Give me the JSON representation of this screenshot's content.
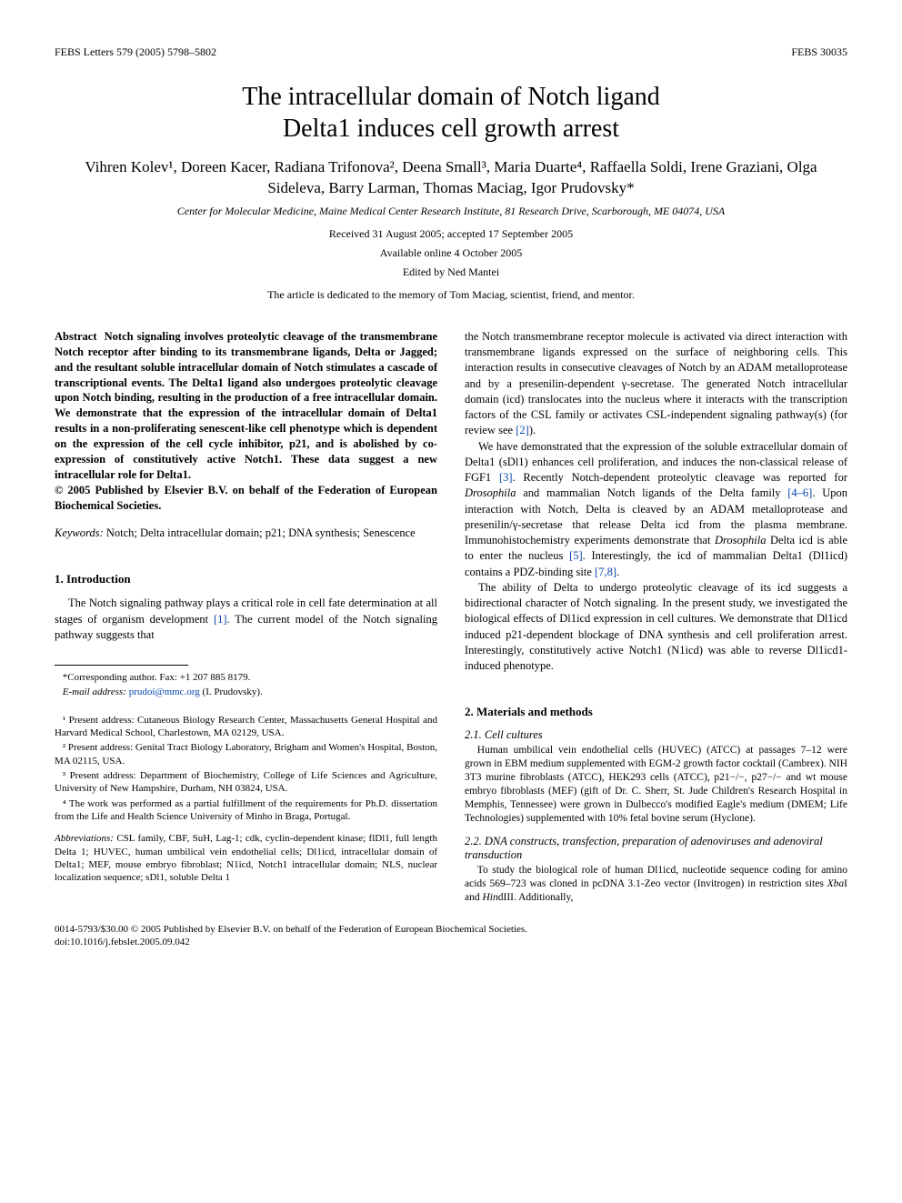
{
  "header": {
    "left": "FEBS Letters 579 (2005) 5798–5802",
    "right": "FEBS 30035"
  },
  "title_line1": "The intracellular domain of Notch ligand",
  "title_line2": "Delta1 induces cell growth arrest",
  "authors": "Vihren Kolev¹, Doreen Kacer, Radiana Trifonova², Deena Small³, Maria Duarte⁴, Raffaella Soldi, Irene Graziani, Olga Sideleva, Barry Larman, Thomas Maciag, Igor Prudovsky*",
  "affiliation": "Center for Molecular Medicine, Maine Medical Center Research Institute, 81 Research Drive, Scarborough, ME 04074, USA",
  "received": "Received 31 August 2005; accepted 17 September 2005",
  "available": "Available online 4 October 2005",
  "edited": "Edited by Ned Mantei",
  "dedication": "The article is dedicated to the memory of Tom Maciag, scientist, friend, and mentor.",
  "abstract_label": "Abstract",
  "abstract": "Notch signaling involves proteolytic cleavage of the transmembrane Notch receptor after binding to its transmembrane ligands, Delta or Jagged; and the resultant soluble intracellular domain of Notch stimulates a cascade of transcriptional events. The Delta1 ligand also undergoes proteolytic cleavage upon Notch binding, resulting in the production of a free intracellular domain. We demonstrate that the expression of the intracellular domain of Delta1 results in a non-proliferating senescent-like cell phenotype which is dependent on the expression of the cell cycle inhibitor, p21, and is abolished by co-expression of constitutively active Notch1. These data suggest a new intracellular role for Delta1.",
  "copyright": "© 2005 Published by Elsevier B.V. on behalf of the Federation of European Biochemical Societies.",
  "keywords_label": "Keywords:",
  "keywords": "Notch; Delta intracellular domain; p21; DNA synthesis; Senescence",
  "sec1_heading": "1. Introduction",
  "intro_p1": "The Notch signaling pathway plays a critical role in cell fate determination at all stages of organism development [1]. The current model of the Notch signaling pathway suggests that",
  "right_p1": "the Notch transmembrane receptor molecule is activated via direct interaction with transmembrane ligands expressed on the surface of neighboring cells. This interaction results in consecutive cleavages of Notch by an ADAM metalloprotease and by a presenilin-dependent γ-secretase. The generated Notch intracellular domain (icd) translocates into the nucleus where it interacts with the transcription factors of the CSL family or activates CSL-independent signaling pathway(s) (for review see [2]).",
  "right_p2": "We have demonstrated that the expression of the soluble extracellular domain of Delta1 (sDl1) enhances cell proliferation, and induces the non-classical release of FGF1 [3]. Recently Notch-dependent proteolytic cleavage was reported for Drosophila and mammalian Notch ligands of the Delta family [4–6]. Upon interaction with Notch, Delta is cleaved by an ADAM metalloprotease and presenilin/γ-secretase that release Delta icd from the plasma membrane. Immunohistochemistry experiments demonstrate that Drosophila Delta icd is able to enter the nucleus [5]. Interestingly, the icd of mammalian Delta1 (Dl1icd) contains a PDZ-binding site [7,8].",
  "right_p3": "The ability of Delta to undergo proteolytic cleavage of its icd suggests a bidirectional character of Notch signaling. In the present study, we investigated the biological effects of Dl1icd expression in cell cultures. We demonstrate that Dl1icd induced p21-dependent blockage of DNA synthesis and cell proliferation arrest. Interestingly, constitutively active Notch1 (N1icd) was able to reverse Dl1icd1- induced phenotype.",
  "sec2_heading": "2. Materials and methods",
  "sub21_heading": "2.1. Cell cultures",
  "sub21_body": "Human umbilical vein endothelial cells (HUVEC) (ATCC) at passages 7–12 were grown in EBM medium supplemented with EGM-2 growth factor cocktail (Cambrex). NIH 3T3 murine fibroblasts (ATCC), HEK293 cells (ATCC), p21−/−, p27−/− and wt mouse embryo fibroblasts (MEF) (gift of Dr. C. Sherr, St. Jude Children's Research Hospital in Memphis, Tennessee) were grown in Dulbecco's modified Eagle's medium (DMEM; Life Technologies) supplemented with 10% fetal bovine serum (Hyclone).",
  "sub22_heading": "2.2. DNA constructs, transfection, preparation of adenoviruses and adenoviral transduction",
  "sub22_body": "To study the biological role of human Dl1icd, nucleotide sequence coding for amino acids 569–723 was cloned in pcDNA 3.1-Zeo vector (Invitrogen) in restriction sites XbaI and HindIII. Additionally,",
  "corr_author": "*Corresponding author. Fax: +1 207 885 8179.",
  "email_label": "E-mail address:",
  "email": "prudoi@mmc.org",
  "email_suffix": "(I. Prudovsky).",
  "fn1": "¹ Present address: Cutaneous Biology Research Center, Massachusetts General Hospital and Harvard Medical School, Charlestown, MA 02129, USA.",
  "fn2": "² Present address: Genital Tract Biology Laboratory, Brigham and Women's Hospital, Boston, MA 02115, USA.",
  "fn3": "³ Present address: Department of Biochemistry, College of Life Sciences and Agriculture, University of New Hampshire, Durham, NH 03824, USA.",
  "fn4": "⁴ The work was performed as a partial fulfillment of the requirements for Ph.D. dissertation from the Life and Health Science University of Minho in Braga, Portugal.",
  "abbrev_label": "Abbreviations:",
  "abbrev": "CSL family, CBF, SuH, Lag-1; cdk, cyclin-dependent kinase; flDl1, full length Delta 1; HUVEC, human umbilical vein endothelial cells; Dl1icd, intracellular domain of Delta1; MEF, mouse embryo fibroblast; N1icd, Notch1 intracellular domain; NLS, nuclear localization sequence; sDl1, soluble Delta 1",
  "footer_line1": "0014-5793/$30.00 © 2005 Published by Elsevier B.V. on behalf of the Federation of European Biochemical Societies.",
  "footer_line2": "doi:10.1016/j.febslet.2005.09.042"
}
